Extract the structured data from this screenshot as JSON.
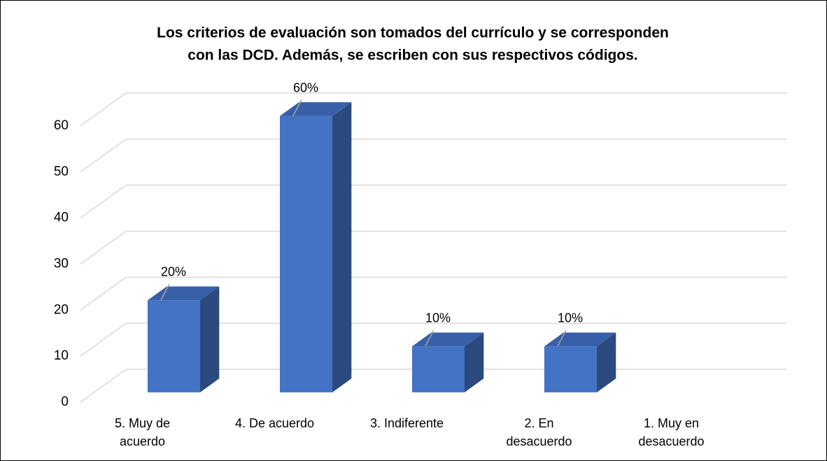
{
  "chart_data": {
    "type": "bar3d",
    "title": [
      "Los criterios de evaluación son tomados del currículo y se corresponden",
      "con las DCD. Además, se escriben con sus respectivos códigos."
    ],
    "categories": [
      "5. Muy de acuerdo",
      "4. De acuerdo",
      "3. Indiferente",
      "2. En desacuerdo",
      "1. Muy en desacuerdo"
    ],
    "values": [
      20,
      60,
      10,
      10,
      0
    ],
    "value_labels": [
      "20%",
      "60%",
      "10%",
      "10%",
      null
    ],
    "color": "#4472c4",
    "ylim": [
      0,
      60
    ],
    "yticks": [
      0,
      10,
      20,
      30,
      40,
      50,
      60
    ],
    "grid": true
  }
}
